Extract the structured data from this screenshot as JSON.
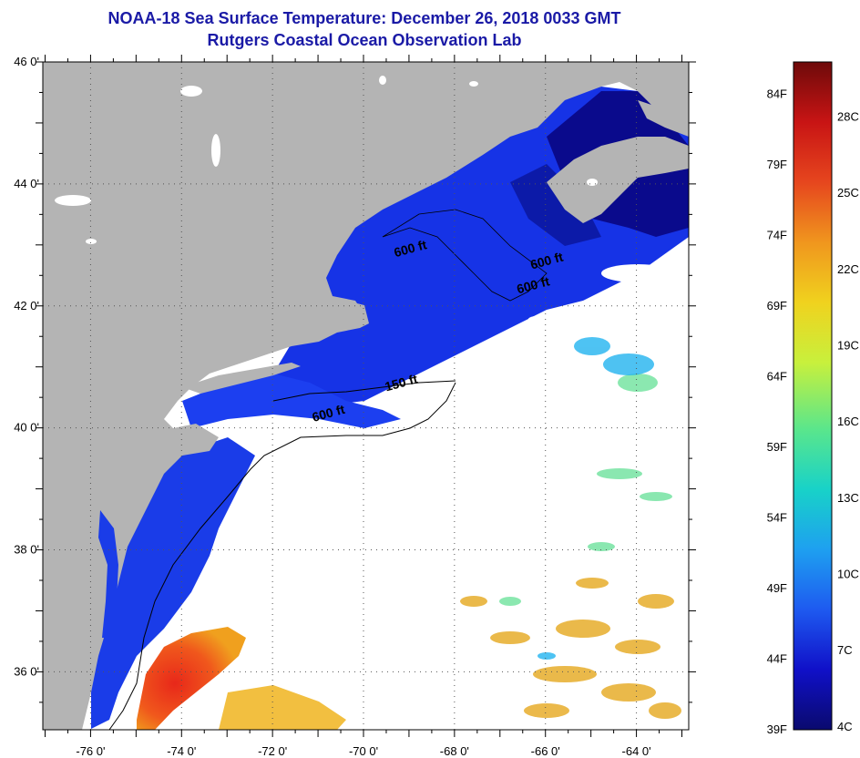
{
  "title": "NOAA-18 Sea Surface Temperature:  December 26, 2018 0033 GMT",
  "subtitle": "Rutgers Coastal Ocean Observation Lab",
  "map": {
    "lat_labels": [
      {
        "deg": 46,
        "text": "46 0'"
      },
      {
        "deg": 44,
        "text": "44 0'"
      },
      {
        "deg": 42,
        "text": "42 0'"
      },
      {
        "deg": 40,
        "text": "40 0'"
      },
      {
        "deg": 38,
        "text": "38 0'"
      },
      {
        "deg": 36,
        "text": "36 0'"
      }
    ],
    "lon_labels": [
      {
        "deg": -76,
        "text": "-76 0'"
      },
      {
        "deg": -74,
        "text": "-74 0'"
      },
      {
        "deg": -72,
        "text": "-72 0'"
      },
      {
        "deg": -70,
        "text": "-70 0'"
      },
      {
        "deg": -68,
        "text": "-68 0'"
      },
      {
        "deg": -66,
        "text": "-66 0'"
      },
      {
        "deg": -64,
        "text": "-64 0'"
      }
    ],
    "contour_labels": [
      {
        "text": "600 ft",
        "lon": -71.1,
        "lat": 40.1
      },
      {
        "text": "150 ft",
        "lon": -69.5,
        "lat": 40.6
      },
      {
        "text": "600 ft",
        "lon": -69.3,
        "lat": 42.8
      },
      {
        "text": "600 ft",
        "lon": -66.6,
        "lat": 42.2
      },
      {
        "text": "600 ft",
        "lon": -66.3,
        "lat": 42.6
      }
    ],
    "colors": {
      "land": "#b4b4b4",
      "cloud": "#ffffff",
      "deep_blue": "#0a1fd6",
      "navy": "#0a0a8c",
      "warm": "#e83a12"
    }
  },
  "colorbar": {
    "labels_f": [
      "84F",
      "79F",
      "74F",
      "69F",
      "64F",
      "59F",
      "54F",
      "49F",
      "44F",
      "39F"
    ],
    "labels_c": [
      "28C",
      "25C",
      "22C",
      "19C",
      "16C",
      "13C",
      "10C",
      "7C",
      "4C"
    ],
    "stops": [
      "#0a0a6e",
      "#1010c8",
      "#1e5af0",
      "#1ea0f0",
      "#18d2c8",
      "#5ae68c",
      "#c8f03c",
      "#f0d21e",
      "#f0961e",
      "#e6461e",
      "#c81414",
      "#6e0a0a"
    ]
  }
}
